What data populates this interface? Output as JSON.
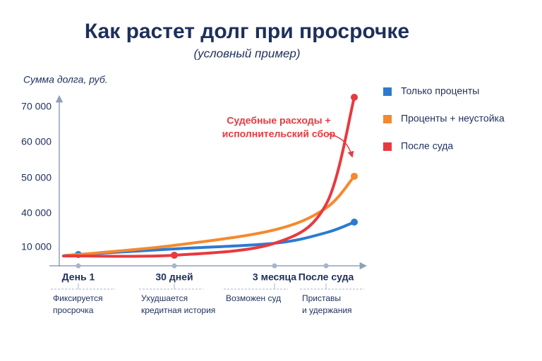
{
  "chart_data": {
    "type": "line",
    "title": "Как растет долг при просрочке",
    "subtitle": "(условный пример)",
    "y_label": "Сумма долга, руб.",
    "annotation": [
      "Судебные расходы +",
      "исполнительский сбор"
    ],
    "categories": [
      null,
      "День 1",
      "30 дней",
      "3 месяца",
      "После суда",
      null
    ],
    "notes": [
      null,
      [
        "Фиксируется",
        "просрочка"
      ],
      [
        "Ухудшается",
        "кредитная история"
      ],
      [
        "Возможен суд"
      ],
      [
        "Приставы",
        "и удержания"
      ],
      null
    ],
    "yticks": [
      {
        "value": 70000,
        "label": "70 000"
      },
      {
        "value": 60000,
        "label": "60 000"
      },
      {
        "value": 50000,
        "label": "50 000"
      },
      {
        "value": 40000,
        "label": "40 000"
      },
      {
        "value": 10000,
        "label": "10 000"
      }
    ],
    "series": [
      {
        "name": "Только проценты",
        "color": "#2b7bd0",
        "values": [
          2500,
          3750,
          8750,
          13750,
          23125,
          32500
        ],
        "markers": [
          1,
          5
        ]
      },
      {
        "name": "Проценты + неустойка",
        "color": "#f5892f",
        "values": [
          2500,
          3750,
          11875,
          25625,
          41600,
          50600
        ],
        "markers": [
          5
        ]
      },
      {
        "name": "После суда",
        "color": "#e8393f",
        "values": [
          2500,
          2500,
          3125,
          13750,
          42600,
          72800
        ],
        "markers": [
          2,
          5
        ]
      }
    ]
  }
}
